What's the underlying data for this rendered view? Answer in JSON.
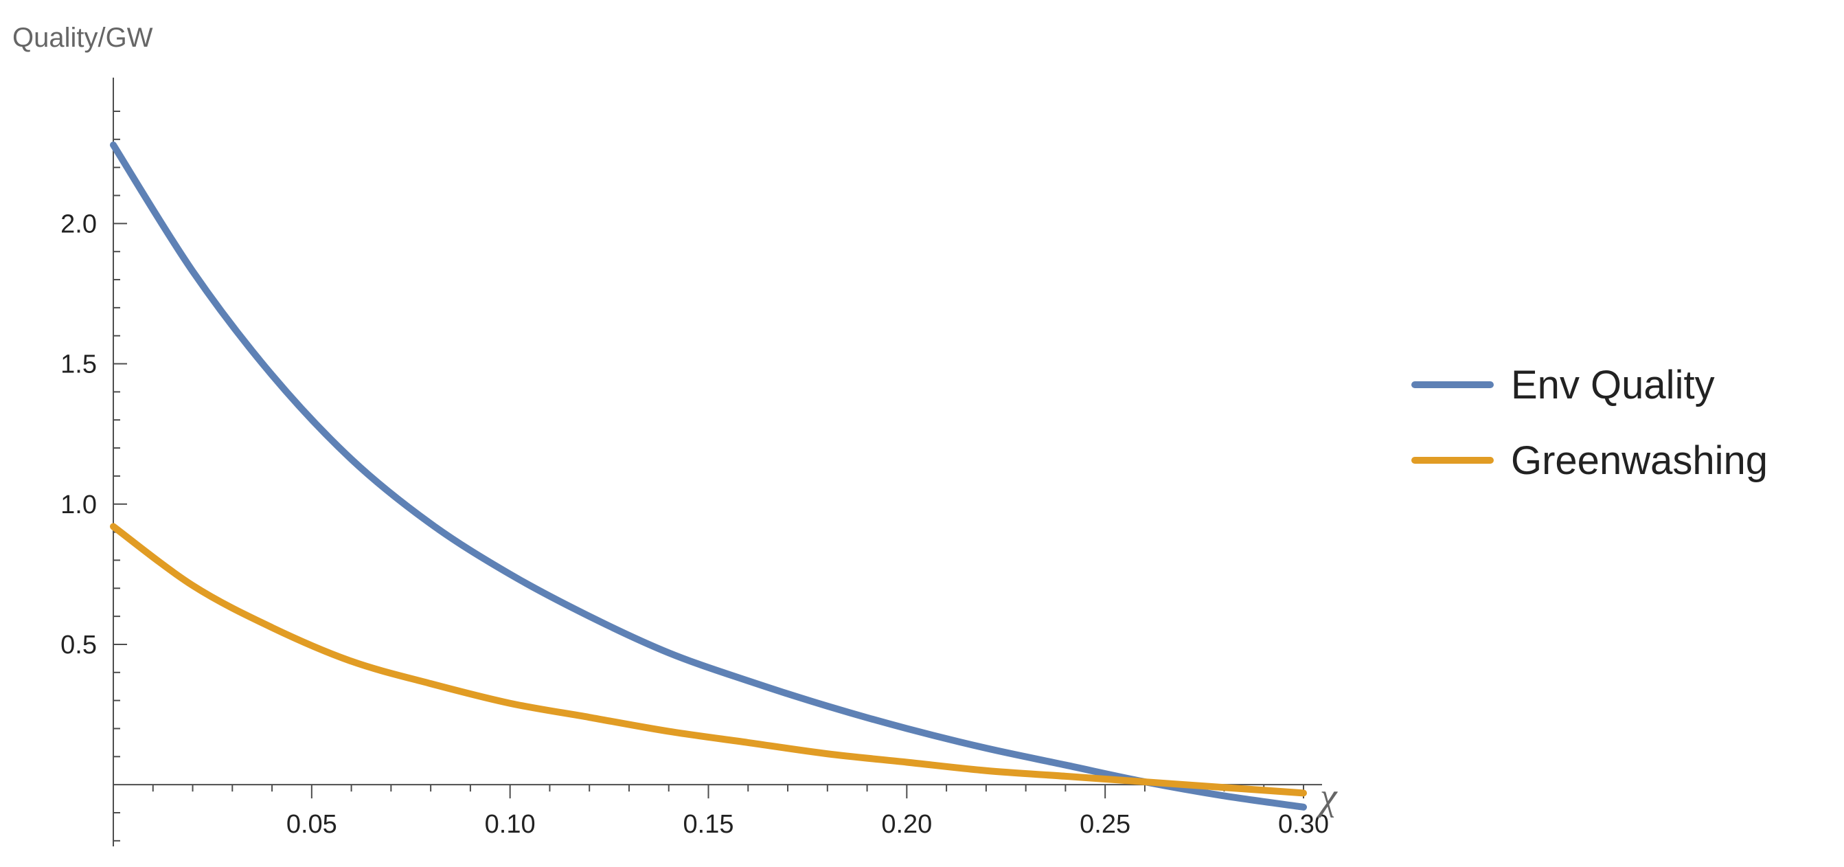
{
  "chart_data": {
    "type": "line",
    "ylabel": "Quality/GW",
    "xlabel": "χ",
    "xlim": [
      0,
      0.3
    ],
    "ylim": [
      -0.22,
      2.52
    ],
    "x_ticks": [
      0.05,
      0.1,
      0.15,
      0.2,
      0.25,
      0.3
    ],
    "x_tick_labels": [
      "0.05",
      "0.10",
      "0.15",
      "0.20",
      "0.25",
      "0.30"
    ],
    "y_ticks": [
      0.5,
      1.0,
      1.5,
      2.0
    ],
    "y_tick_labels": [
      "0.5",
      "1.0",
      "1.5",
      "2.0"
    ],
    "grid": false,
    "legend_position": "right",
    "series": [
      {
        "name": "Env Quality",
        "color": "#5e81b5",
        "x": [
          0,
          0.02,
          0.04,
          0.06,
          0.08,
          0.1,
          0.12,
          0.14,
          0.16,
          0.18,
          0.2,
          0.22,
          0.24,
          0.26,
          0.28,
          0.3
        ],
        "y": [
          2.28,
          1.83,
          1.46,
          1.16,
          0.93,
          0.75,
          0.6,
          0.47,
          0.37,
          0.28,
          0.2,
          0.13,
          0.07,
          0.01,
          -0.04,
          -0.08
        ]
      },
      {
        "name": "Greenwashing",
        "color": "#e19c24",
        "x": [
          0,
          0.02,
          0.04,
          0.06,
          0.08,
          0.1,
          0.12,
          0.14,
          0.16,
          0.18,
          0.2,
          0.22,
          0.24,
          0.26,
          0.28,
          0.3
        ],
        "y": [
          0.92,
          0.71,
          0.56,
          0.44,
          0.36,
          0.29,
          0.24,
          0.19,
          0.15,
          0.11,
          0.08,
          0.05,
          0.03,
          0.01,
          -0.01,
          -0.03
        ]
      }
    ]
  }
}
